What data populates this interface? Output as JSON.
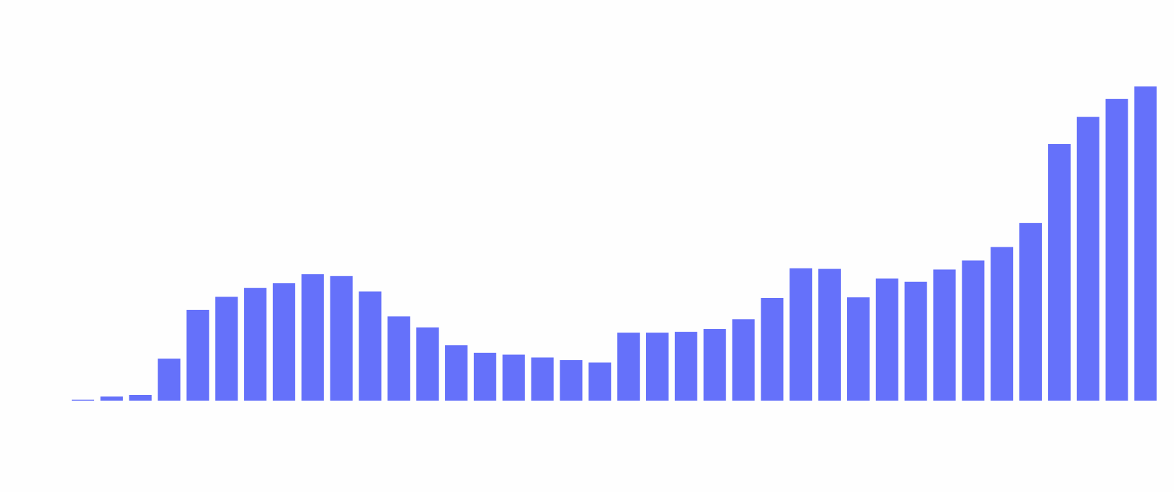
{
  "chart_data": {
    "type": "bar",
    "title": "",
    "xlabel": "",
    "ylabel": "",
    "ylim": [
      0,
      100
    ],
    "grid": false,
    "bar_color": "#6571fa",
    "background": "#fefefe",
    "values": [
      0.3,
      1.3,
      1.8,
      13.4,
      29.0,
      33.2,
      36.0,
      37.5,
      40.4,
      39.8,
      34.9,
      26.9,
      23.4,
      17.7,
      15.3,
      14.7,
      13.8,
      13.0,
      12.2,
      21.7,
      21.7,
      22.0,
      22.9,
      26.0,
      32.8,
      42.3,
      42.1,
      33.0,
      39.0,
      38.0,
      41.9,
      44.8,
      49.1,
      56.8,
      82.0,
      90.7,
      96.4,
      100.4
    ]
  }
}
